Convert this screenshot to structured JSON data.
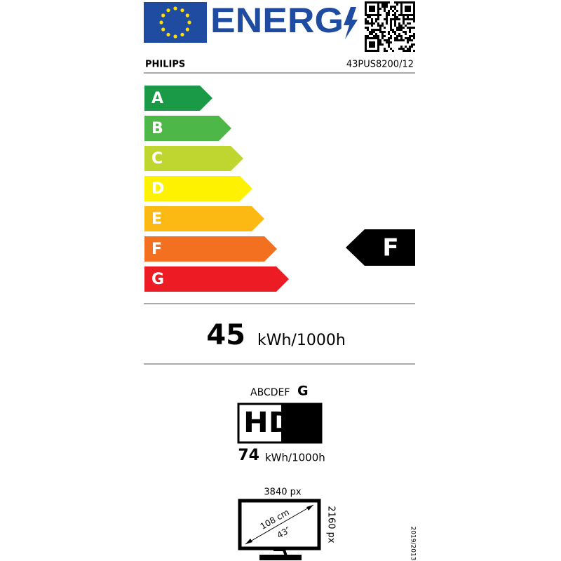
{
  "header": {
    "title": "ENERG",
    "brand": "PHILIPS",
    "model": "43PUS8200/12"
  },
  "classes": [
    {
      "label": "A",
      "color": "#1a9a46"
    },
    {
      "label": "B",
      "color": "#4db848"
    },
    {
      "label": "C",
      "color": "#bfd630"
    },
    {
      "label": "D",
      "color": "#fff200"
    },
    {
      "label": "E",
      "color": "#fdb913"
    },
    {
      "label": "F",
      "color": "#f37021"
    },
    {
      "label": "G",
      "color": "#ed1c24"
    }
  ],
  "rating": "F",
  "energy": {
    "value": 45,
    "unit": "kWh/1000h"
  },
  "hdr": {
    "scale": "ABCDEF",
    "scale_last": "G",
    "logo": "HDR",
    "value": 74,
    "unit": "kWh/1000h"
  },
  "screen": {
    "width": "3840 px",
    "height": "2160 px",
    "diagonal_cm": "108 cm",
    "diagonal_in": "43″"
  },
  "regulation": "2019/2013"
}
